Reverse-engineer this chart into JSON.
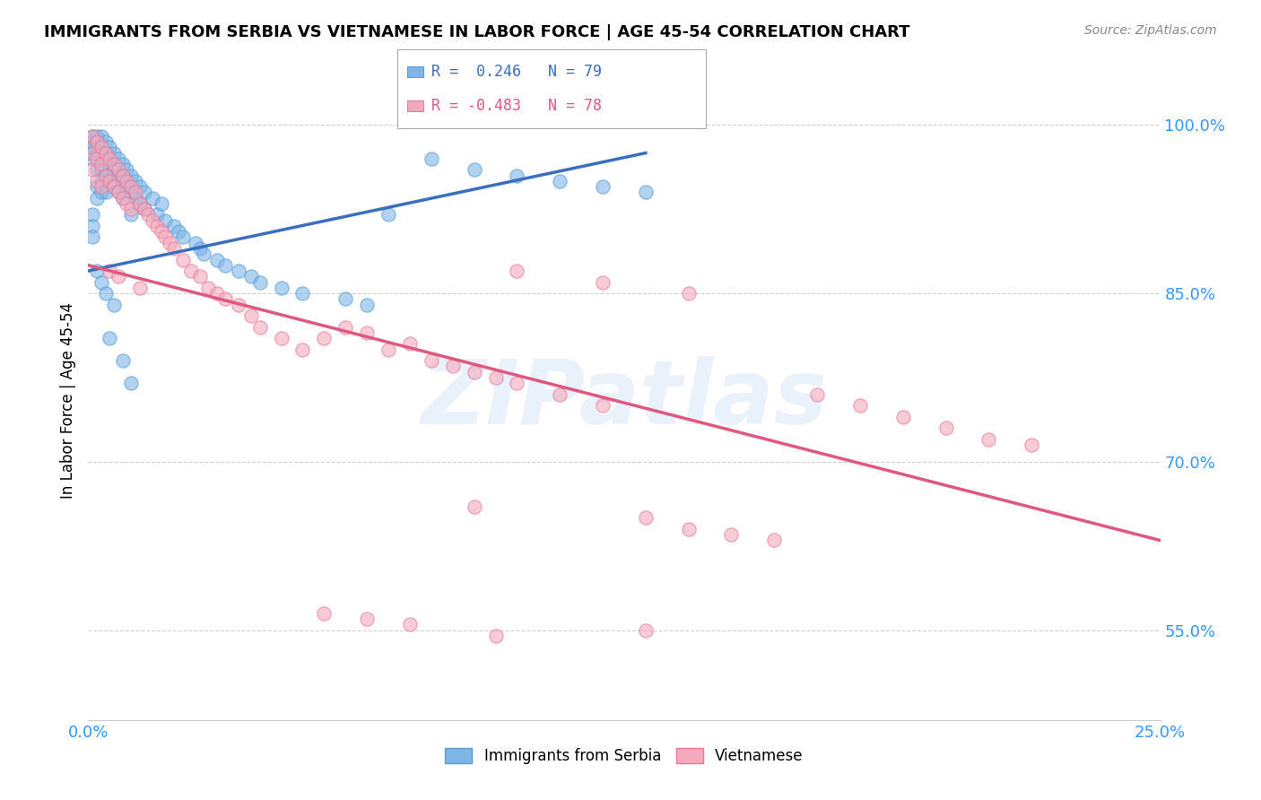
{
  "title": "IMMIGRANTS FROM SERBIA VS VIETNAMESE IN LABOR FORCE | AGE 45-54 CORRELATION CHART",
  "source": "Source: ZipAtlas.com",
  "ylabel": "In Labor Force | Age 45-54",
  "xlim": [
    0.0,
    0.25
  ],
  "ylim": [
    0.47,
    1.04
  ],
  "xtick_positions": [
    0.0,
    0.05,
    0.1,
    0.15,
    0.2,
    0.25
  ],
  "xticklabels": [
    "0.0%",
    "",
    "",
    "",
    "",
    "25.0%"
  ],
  "ytick_positions": [
    0.55,
    0.7,
    0.85,
    1.0
  ],
  "yticklabels": [
    "55.0%",
    "70.0%",
    "85.0%",
    "100.0%"
  ],
  "serbia_color": "#7EB6E8",
  "vietnamese_color": "#F4AABC",
  "serbia_edge_color": "#5A9ED4",
  "vietnamese_edge_color": "#E87A9A",
  "serbia_line_color": "#3A6FBF",
  "vietnamese_line_color": "#E05880",
  "serbia_R": 0.246,
  "serbia_N": 79,
  "vietnamese_R": -0.483,
  "vietnamese_N": 78,
  "legend_labels": [
    "Immigrants from Serbia",
    "Vietnamese"
  ],
  "watermark": "ZIPatlas",
  "serbia_line_x0": 0.0,
  "serbia_line_y0": 0.87,
  "serbia_line_x1": 0.13,
  "serbia_line_y1": 0.975,
  "vietnamese_line_x0": 0.0,
  "vietnamese_line_y0": 0.875,
  "vietnamese_line_x1": 0.25,
  "vietnamese_line_y1": 0.63,
  "serbia_scatter_x": [
    0.001,
    0.001,
    0.001,
    0.001,
    0.001,
    0.001,
    0.001,
    0.001,
    0.002,
    0.002,
    0.002,
    0.002,
    0.002,
    0.002,
    0.003,
    0.003,
    0.003,
    0.003,
    0.003,
    0.004,
    0.004,
    0.004,
    0.004,
    0.005,
    0.005,
    0.005,
    0.006,
    0.006,
    0.006,
    0.007,
    0.007,
    0.007,
    0.008,
    0.008,
    0.008,
    0.009,
    0.009,
    0.01,
    0.01,
    0.01,
    0.011,
    0.011,
    0.012,
    0.012,
    0.013,
    0.013,
    0.015,
    0.016,
    0.017,
    0.018,
    0.02,
    0.021,
    0.022,
    0.025,
    0.026,
    0.027,
    0.03,
    0.032,
    0.035,
    0.038,
    0.04,
    0.045,
    0.05,
    0.06,
    0.065,
    0.07,
    0.08,
    0.09,
    0.1,
    0.11,
    0.12,
    0.13,
    0.005,
    0.008,
    0.01,
    0.002,
    0.003,
    0.004,
    0.006
  ],
  "serbia_scatter_y": [
    0.99,
    0.985,
    0.98,
    0.975,
    0.97,
    0.92,
    0.91,
    0.9,
    0.99,
    0.985,
    0.975,
    0.96,
    0.945,
    0.935,
    0.99,
    0.975,
    0.96,
    0.95,
    0.94,
    0.985,
    0.97,
    0.955,
    0.94,
    0.98,
    0.965,
    0.95,
    0.975,
    0.96,
    0.945,
    0.97,
    0.955,
    0.94,
    0.965,
    0.95,
    0.935,
    0.96,
    0.945,
    0.955,
    0.94,
    0.92,
    0.95,
    0.935,
    0.945,
    0.93,
    0.94,
    0.925,
    0.935,
    0.92,
    0.93,
    0.915,
    0.91,
    0.905,
    0.9,
    0.895,
    0.89,
    0.885,
    0.88,
    0.875,
    0.87,
    0.865,
    0.86,
    0.855,
    0.85,
    0.845,
    0.84,
    0.92,
    0.97,
    0.96,
    0.955,
    0.95,
    0.945,
    0.94,
    0.81,
    0.79,
    0.77,
    0.87,
    0.86,
    0.85,
    0.84
  ],
  "vietnamese_scatter_x": [
    0.001,
    0.001,
    0.001,
    0.002,
    0.002,
    0.002,
    0.003,
    0.003,
    0.003,
    0.004,
    0.004,
    0.005,
    0.005,
    0.006,
    0.006,
    0.007,
    0.007,
    0.008,
    0.008,
    0.009,
    0.009,
    0.01,
    0.01,
    0.011,
    0.012,
    0.013,
    0.014,
    0.015,
    0.016,
    0.017,
    0.018,
    0.019,
    0.02,
    0.022,
    0.024,
    0.026,
    0.028,
    0.03,
    0.032,
    0.035,
    0.038,
    0.04,
    0.045,
    0.05,
    0.055,
    0.06,
    0.065,
    0.07,
    0.075,
    0.08,
    0.085,
    0.09,
    0.095,
    0.1,
    0.11,
    0.12,
    0.13,
    0.14,
    0.15,
    0.16,
    0.17,
    0.18,
    0.19,
    0.2,
    0.21,
    0.22,
    0.1,
    0.12,
    0.14,
    0.055,
    0.09,
    0.065,
    0.075,
    0.13,
    0.095,
    0.005,
    0.007,
    0.012
  ],
  "vietnamese_scatter_y": [
    0.99,
    0.975,
    0.96,
    0.985,
    0.97,
    0.95,
    0.98,
    0.965,
    0.945,
    0.975,
    0.955,
    0.97,
    0.95,
    0.965,
    0.945,
    0.96,
    0.94,
    0.955,
    0.935,
    0.95,
    0.93,
    0.945,
    0.925,
    0.94,
    0.93,
    0.925,
    0.92,
    0.915,
    0.91,
    0.905,
    0.9,
    0.895,
    0.89,
    0.88,
    0.87,
    0.865,
    0.855,
    0.85,
    0.845,
    0.84,
    0.83,
    0.82,
    0.81,
    0.8,
    0.81,
    0.82,
    0.815,
    0.8,
    0.805,
    0.79,
    0.785,
    0.78,
    0.775,
    0.77,
    0.76,
    0.75,
    0.65,
    0.64,
    0.635,
    0.63,
    0.76,
    0.75,
    0.74,
    0.73,
    0.72,
    0.715,
    0.87,
    0.86,
    0.85,
    0.565,
    0.66,
    0.56,
    0.555,
    0.55,
    0.545,
    0.87,
    0.865,
    0.855
  ]
}
